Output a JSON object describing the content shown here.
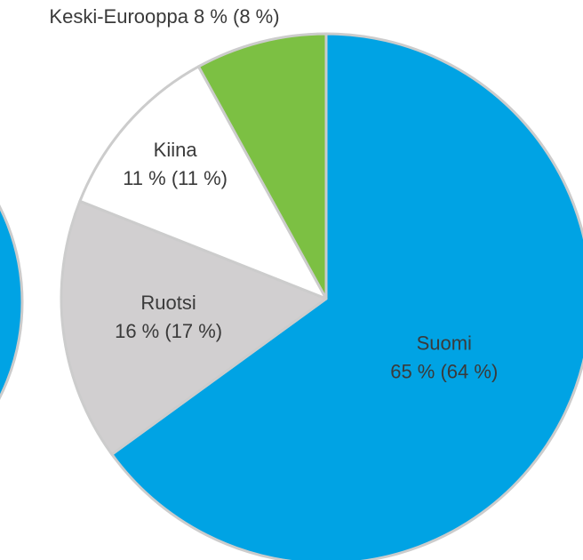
{
  "chart_data": {
    "type": "pie",
    "categories": [
      "Suomi",
      "Ruotsi",
      "Kiina",
      "Keski-Eurooppa"
    ],
    "values": [
      65,
      16,
      11,
      8
    ],
    "value_labels": [
      "65 % (64 %)",
      "16 % (17 %)",
      "11 % (11 %)",
      "8 % (8 %)"
    ],
    "colors": [
      "#00a3e4",
      "#d1cfd0",
      "#ffffff",
      "#7cc043"
    ]
  }
}
